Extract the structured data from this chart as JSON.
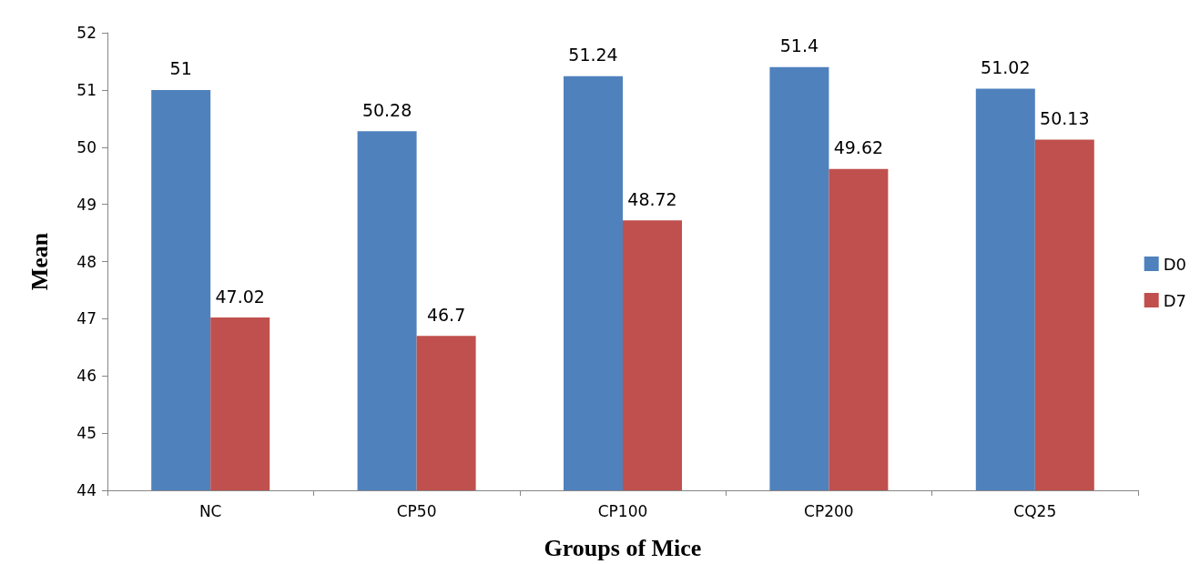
{
  "chart_data": {
    "type": "bar",
    "xlabel": "Groups of Mice",
    "ylabel": "Mean",
    "categories": [
      "NC",
      "CP50",
      "CP100",
      "CP200",
      "CQ25"
    ],
    "series": [
      {
        "name": "D0",
        "color": "#4f81bd",
        "values": [
          51,
          50.28,
          51.24,
          51.4,
          51.02
        ]
      },
      {
        "name": "D7",
        "color": "#c0504d",
        "values": [
          47.02,
          46.7,
          48.72,
          49.62,
          50.13
        ]
      }
    ],
    "ylim": [
      44,
      52
    ],
    "yticks": [
      44,
      45,
      46,
      47,
      48,
      49,
      50,
      51,
      52
    ],
    "grid": false,
    "legend": "right",
    "data_labels": true
  }
}
